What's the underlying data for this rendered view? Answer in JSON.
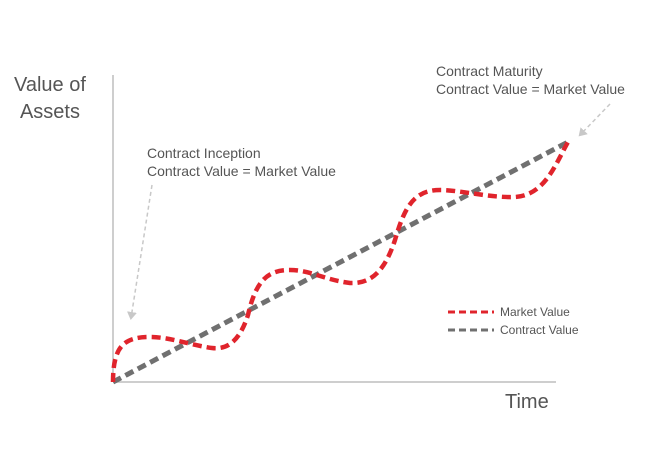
{
  "axes": {
    "y_label_line1": "Value of",
    "y_label_line2": "Assets",
    "x_label": "Time"
  },
  "annotations": {
    "inception": {
      "line1": "Contract Inception",
      "line2": "Contract Value = Market Value"
    },
    "maturity": {
      "line1": "Contract Maturity",
      "line2": "Contract Value = Market Value"
    }
  },
  "legend": {
    "items": [
      {
        "label": "Market Value",
        "color": "#e0242c"
      },
      {
        "label": "Contract Value",
        "color": "#707070"
      }
    ]
  },
  "colors": {
    "market_value": "#e0242c",
    "contract_value": "#707070",
    "axis": "#bdbdbd",
    "arrow": "#c8c8c8"
  }
}
